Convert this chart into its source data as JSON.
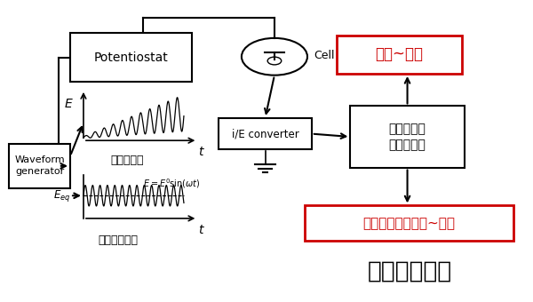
{
  "bg_color": "#ffffff",
  "potentiostat_label": "Potentiostat",
  "ie_label": "i/E converter",
  "lockin_label": "锁相放大器\n频谱分析仪",
  "waveform_label": "Waveform\ngenerator",
  "red1_label": "阻抗~频率",
  "red2_label": "阻抗模量、相位角~频率",
  "big_label": "阻抗测量技术",
  "cell_label": "Cell",
  "ac_label": "交流伏安法",
  "ec_label": "电化学阻抗法",
  "e_label": "E",
  "t_label": "t",
  "eeq_label": "$E_{eq}$",
  "eq_formula": "$E=E^0\\sin(\\omega t)$",
  "black": "#000000",
  "red": "#cc0000"
}
